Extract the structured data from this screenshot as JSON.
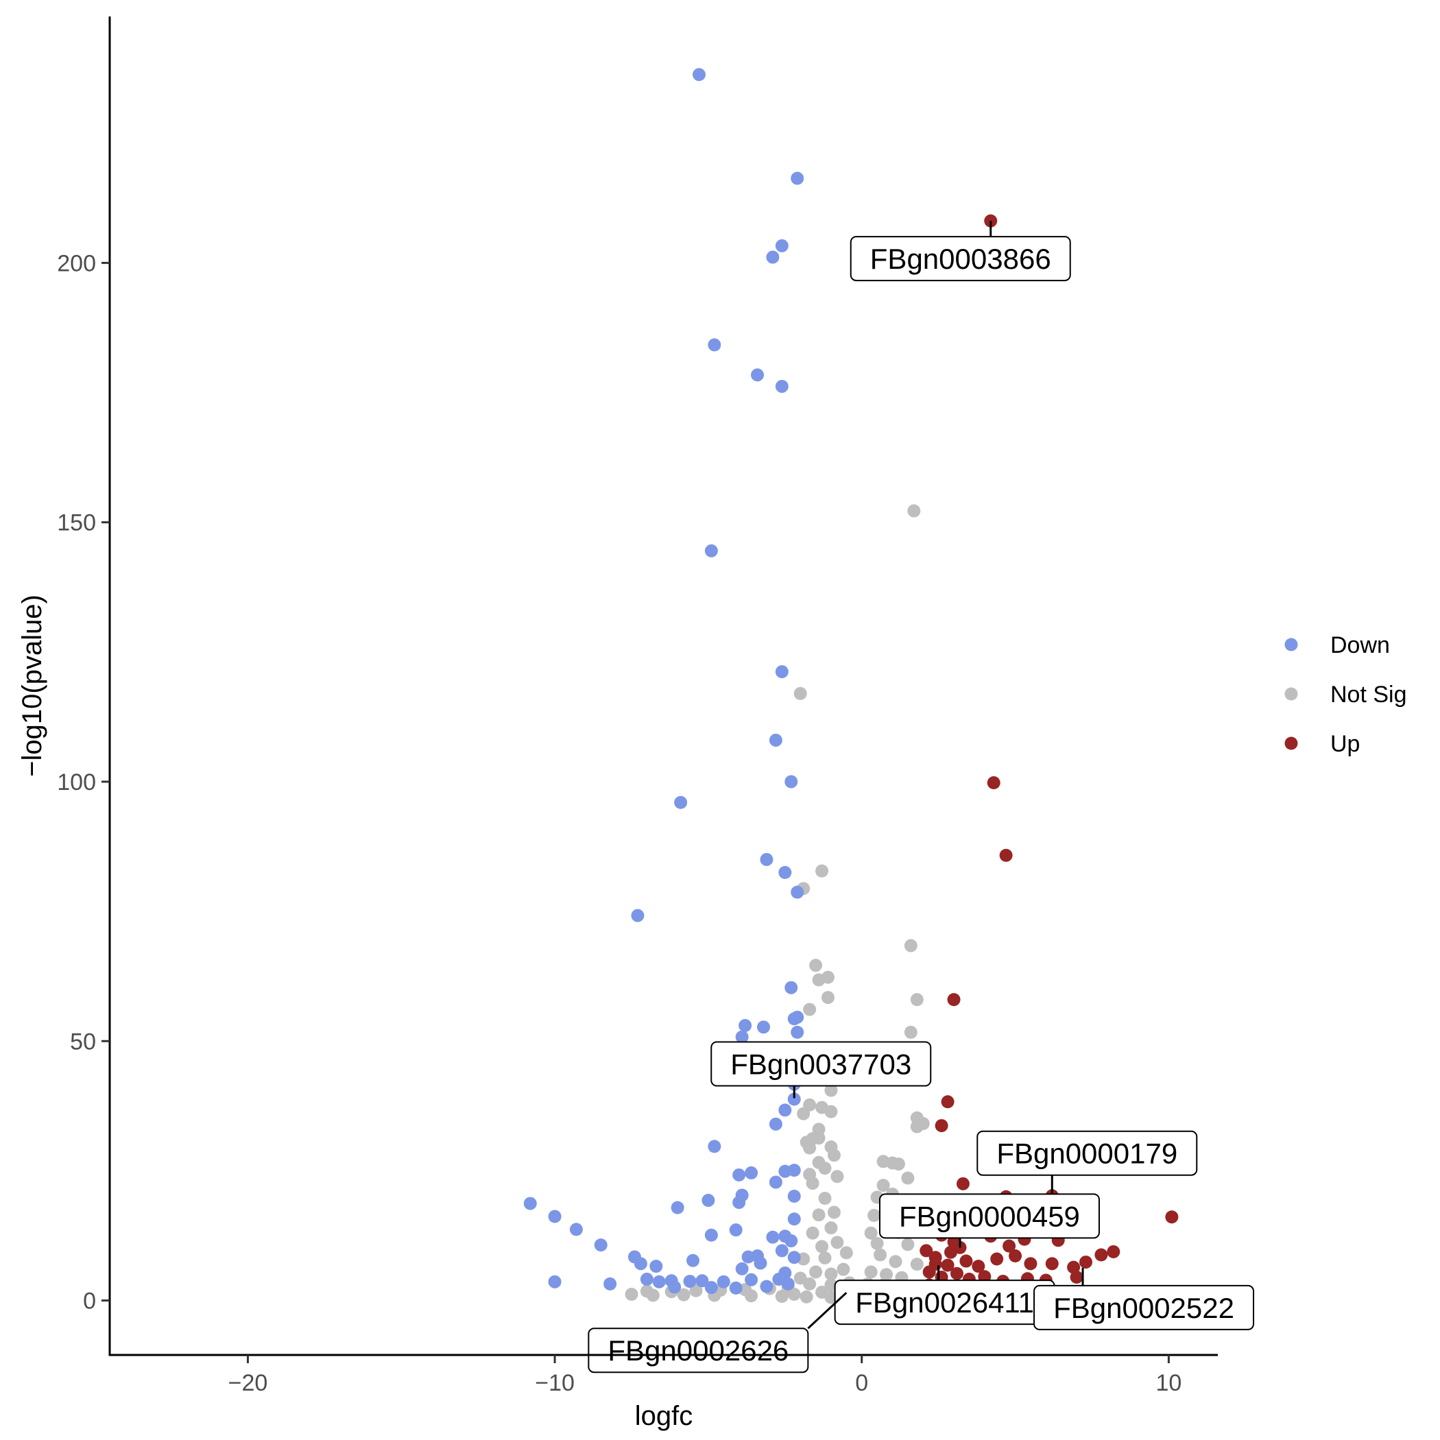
{
  "chart_data": {
    "type": "scatter",
    "title": "",
    "xlabel": "logfc",
    "ylabel": "−log10(pvalue)",
    "xlim": [
      -24.5,
      11.6
    ],
    "ylim": [
      -10.5,
      247.5
    ],
    "xticks": [
      -20,
      -10,
      0,
      10
    ],
    "xtick_labels": [
      "−20",
      "−10",
      "0",
      "10"
    ],
    "yticks": [
      0,
      50,
      100,
      150,
      200
    ],
    "ytick_labels": [
      "0",
      "50",
      "100",
      "150",
      "200"
    ],
    "grid": false,
    "legend_position": "right",
    "series": [
      {
        "name": "Down",
        "color": "#7b96e6",
        "points": [
          [
            -5.3,
            236.3
          ],
          [
            -2.1,
            216.3
          ],
          [
            -2.6,
            203.3
          ],
          [
            -2.9,
            201.1
          ],
          [
            -4.8,
            184.2
          ],
          [
            -3.4,
            178.4
          ],
          [
            -2.6,
            176.2
          ],
          [
            -4.9,
            144.5
          ],
          [
            -2.6,
            121.2
          ],
          [
            -2.8,
            108.0
          ],
          [
            -2.3,
            100.0
          ],
          [
            -5.9,
            96.0
          ],
          [
            -3.1,
            85.0
          ],
          [
            -2.5,
            82.5
          ],
          [
            -2.1,
            78.7
          ],
          [
            -7.3,
            74.2
          ],
          [
            -2.3,
            60.3
          ],
          [
            -3.8,
            53.0
          ],
          [
            -3.2,
            52.7
          ],
          [
            -2.1,
            54.6
          ],
          [
            -2.2,
            54.3
          ],
          [
            -3.9,
            50.8
          ],
          [
            -2.1,
            51.7
          ],
          [
            -2.2,
            41.7
          ],
          [
            -2.2,
            38.8
          ],
          [
            -2.5,
            36.7
          ],
          [
            -2.8,
            34.0
          ],
          [
            -4.8,
            29.7
          ],
          [
            -4.0,
            24.2
          ],
          [
            -3.6,
            24.6
          ],
          [
            -2.5,
            24.9
          ],
          [
            -2.2,
            25.1
          ],
          [
            -2.8,
            22.8
          ],
          [
            -3.9,
            20.3
          ],
          [
            -4.0,
            18.9
          ],
          [
            -2.2,
            20.1
          ],
          [
            -10.8,
            18.7
          ],
          [
            -10.0,
            16.2
          ],
          [
            -5.0,
            19.3
          ],
          [
            -6.0,
            17.9
          ],
          [
            -9.3,
            13.7
          ],
          [
            -8.5,
            10.7
          ],
          [
            -4.9,
            12.6
          ],
          [
            -4.1,
            13.6
          ],
          [
            -2.9,
            12.2
          ],
          [
            -2.2,
            15.7
          ],
          [
            -7.4,
            8.4
          ],
          [
            -7.2,
            7.1
          ],
          [
            -6.7,
            6.6
          ],
          [
            -5.5,
            7.7
          ],
          [
            -3.7,
            8.4
          ],
          [
            -3.4,
            8.6
          ],
          [
            -3.3,
            7.2
          ],
          [
            -3.9,
            6.1
          ],
          [
            -2.5,
            12.4
          ],
          [
            -2.3,
            11.5
          ],
          [
            -2.2,
            8.3
          ],
          [
            -7.0,
            4.1
          ],
          [
            -6.6,
            3.6
          ],
          [
            -6.2,
            3.8
          ],
          [
            -5.6,
            3.7
          ],
          [
            -5.2,
            3.8
          ],
          [
            -4.5,
            3.6
          ],
          [
            -3.6,
            4.0
          ],
          [
            -2.7,
            4.1
          ],
          [
            -2.4,
            3.2
          ],
          [
            -2.6,
            9.6
          ],
          [
            -10.0,
            3.6
          ],
          [
            -8.2,
            3.2
          ],
          [
            -6.1,
            2.6
          ],
          [
            -4.9,
            2.5
          ],
          [
            -4.1,
            2.4
          ],
          [
            -3.1,
            2.7
          ],
          [
            -2.5,
            5.3
          ]
        ]
      },
      {
        "name": "Not Sig",
        "color": "#bebebe",
        "points": [
          [
            1.7,
            152.2
          ],
          [
            -2.0,
            117.0
          ],
          [
            -1.3,
            82.8
          ],
          [
            -1.9,
            79.4
          ],
          [
            1.6,
            68.4
          ],
          [
            -1.5,
            64.6
          ],
          [
            -1.4,
            61.8
          ],
          [
            -1.1,
            62.3
          ],
          [
            1.8,
            58.0
          ],
          [
            -1.1,
            58.4
          ],
          [
            -1.7,
            56.1
          ],
          [
            1.6,
            51.7
          ],
          [
            -1.0,
            40.5
          ],
          [
            -1.7,
            37.7
          ],
          [
            -1.3,
            37.2
          ],
          [
            -1.0,
            36.4
          ],
          [
            -1.9,
            36.0
          ],
          [
            1.8,
            35.2
          ],
          [
            1.8,
            33.5
          ],
          [
            2.0,
            34.1
          ],
          [
            -1.4,
            33.0
          ],
          [
            -1.6,
            31.2
          ],
          [
            -1.4,
            31.3
          ],
          [
            -1.7,
            29.4
          ],
          [
            -1.8,
            30.5
          ],
          [
            -1.0,
            29.6
          ],
          [
            -0.9,
            28.0
          ],
          [
            -1.4,
            26.6
          ],
          [
            -1.2,
            25.5
          ],
          [
            -1.7,
            24.3
          ],
          [
            -0.8,
            23.9
          ],
          [
            0.7,
            26.8
          ],
          [
            1.0,
            26.5
          ],
          [
            1.2,
            26.3
          ],
          [
            1.5,
            23.6
          ],
          [
            0.7,
            22.2
          ],
          [
            -1.6,
            22.6
          ],
          [
            -1.2,
            19.7
          ],
          [
            0.5,
            19.9
          ],
          [
            1.0,
            20.5
          ],
          [
            1.4,
            19.4
          ],
          [
            -0.9,
            17.0
          ],
          [
            -1.4,
            16.5
          ],
          [
            0.4,
            16.4
          ],
          [
            0.9,
            15.5
          ],
          [
            1.6,
            16.2
          ],
          [
            -1.0,
            14.0
          ],
          [
            -1.6,
            13.0
          ],
          [
            0.3,
            13.0
          ],
          [
            1.2,
            13.1
          ],
          [
            -0.8,
            11.2
          ],
          [
            -1.3,
            10.4
          ],
          [
            0.5,
            11.0
          ],
          [
            1.5,
            10.8
          ],
          [
            -0.5,
            9.2
          ],
          [
            -1.2,
            8.2
          ],
          [
            -1.9,
            8.0
          ],
          [
            0.6,
            8.8
          ],
          [
            1.1,
            7.5
          ],
          [
            1.8,
            7.0
          ],
          [
            -0.6,
            6.0
          ],
          [
            -1.0,
            5.1
          ],
          [
            -1.5,
            5.5
          ],
          [
            0.3,
            5.5
          ],
          [
            0.8,
            5.0
          ],
          [
            1.3,
            4.4
          ],
          [
            -2.0,
            4.3
          ],
          [
            -0.4,
            3.4
          ],
          [
            -1.0,
            3.0
          ],
          [
            -1.7,
            3.2
          ],
          [
            0.2,
            3.2
          ],
          [
            0.7,
            3.0
          ],
          [
            1.5,
            2.8
          ],
          [
            -2.4,
            2.5
          ],
          [
            -3.0,
            2.3
          ],
          [
            -3.8,
            2.1
          ],
          [
            -4.6,
            2.0
          ],
          [
            -5.4,
            1.9
          ],
          [
            -6.2,
            1.7
          ],
          [
            -7.0,
            1.8
          ],
          [
            -7.5,
            1.2
          ],
          [
            -6.8,
            1.0
          ],
          [
            -5.8,
            1.1
          ],
          [
            -4.8,
            1.0
          ],
          [
            -3.6,
            0.9
          ],
          [
            -2.6,
            0.8
          ],
          [
            -1.8,
            0.7
          ],
          [
            -1.0,
            0.6
          ],
          [
            -0.3,
            0.5
          ],
          [
            0.4,
            0.6
          ],
          [
            1.0,
            0.7
          ],
          [
            1.7,
            0.8
          ],
          [
            2.3,
            1.0
          ],
          [
            -0.5,
            1.5
          ],
          [
            0.1,
            2.0
          ],
          [
            -1.3,
            1.6
          ],
          [
            -2.2,
            1.2
          ],
          [
            1.9,
            1.7
          ]
        ]
      },
      {
        "name": "Up",
        "color": "#982424",
        "points": [
          [
            4.2,
            208.1
          ],
          [
            4.3,
            99.8
          ],
          [
            4.7,
            85.8
          ],
          [
            3.0,
            58.0
          ],
          [
            2.8,
            38.3
          ],
          [
            2.6,
            33.7
          ],
          [
            3.3,
            22.5
          ],
          [
            4.7,
            20.0
          ],
          [
            6.2,
            20.2
          ],
          [
            10.1,
            16.1
          ],
          [
            2.6,
            12.6
          ],
          [
            3.0,
            11.3
          ],
          [
            3.5,
            13.2
          ],
          [
            4.2,
            12.4
          ],
          [
            4.8,
            10.5
          ],
          [
            5.3,
            11.8
          ],
          [
            6.4,
            11.6
          ],
          [
            2.1,
            9.6
          ],
          [
            2.4,
            8.3
          ],
          [
            2.9,
            9.3
          ],
          [
            3.4,
            7.6
          ],
          [
            3.8,
            6.6
          ],
          [
            4.4,
            8.0
          ],
          [
            5.0,
            8.6
          ],
          [
            5.5,
            7.1
          ],
          [
            6.2,
            7.1
          ],
          [
            6.9,
            6.4
          ],
          [
            7.3,
            7.4
          ],
          [
            7.8,
            8.8
          ],
          [
            8.2,
            9.4
          ],
          [
            2.2,
            5.5
          ],
          [
            2.6,
            4.5
          ],
          [
            3.1,
            5.2
          ],
          [
            3.5,
            4.1
          ],
          [
            4.0,
            4.6
          ],
          [
            4.6,
            3.7
          ],
          [
            5.4,
            4.2
          ],
          [
            6.0,
            3.9
          ],
          [
            7.0,
            4.5
          ],
          [
            2.2,
            3.0
          ],
          [
            3.0,
            2.6
          ],
          [
            4.1,
            2.2
          ],
          [
            2.4,
            7.0
          ],
          [
            2.8,
            6.8
          ],
          [
            3.2,
            10.2
          ]
        ]
      }
    ],
    "annotations": [
      {
        "label": "FBgn0003866",
        "x": 4.2,
        "y": 208.1
      },
      {
        "label": "FBgn0037703",
        "x": -2.2,
        "y": 39.0
      },
      {
        "label": "FBgn0000179",
        "x": 6.2,
        "y": 20.2
      },
      {
        "label": "FBgn0000459",
        "x": 3.2,
        "y": 10.2
      },
      {
        "label": "FBgn0026411",
        "x": 2.5,
        "y": 6.8
      },
      {
        "label": "FBgn0002522",
        "x": 7.2,
        "y": 6.3
      },
      {
        "label": "FBgn0002626",
        "x": -0.5,
        "y": 1.5
      }
    ]
  }
}
